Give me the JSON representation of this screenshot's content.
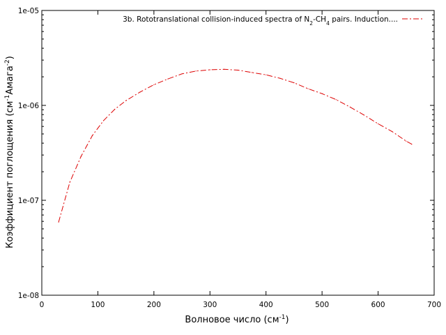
{
  "chart_data": {
    "type": "line",
    "x_scale": "linear",
    "y_scale": "log",
    "xlim": [
      0,
      700
    ],
    "ylim": [
      1e-08,
      1e-05
    ],
    "grid": false,
    "legend_position": "top-right",
    "xlabel_parts": {
      "base": "Волновое число (см",
      "sup": "-1",
      "end": ")"
    },
    "ylabel_parts": {
      "base": "Коэффициент поглощения (см",
      "sup1": "-1",
      "mid": "Амага",
      "sup2": "-2",
      "end": ")"
    },
    "x_ticks": [
      {
        "value": 0,
        "label": "0"
      },
      {
        "value": 100,
        "label": "100"
      },
      {
        "value": 200,
        "label": "200"
      },
      {
        "value": 300,
        "label": "300"
      },
      {
        "value": 400,
        "label": "400"
      },
      {
        "value": 500,
        "label": "500"
      },
      {
        "value": 600,
        "label": "600"
      },
      {
        "value": 700,
        "label": "700"
      }
    ],
    "y_ticks": [
      {
        "value": 1e-08,
        "label": "1e-08"
      },
      {
        "value": 1e-07,
        "label": "1e-07"
      },
      {
        "value": 1e-06,
        "label": "1e-06"
      },
      {
        "value": 1e-05,
        "label": "1e-05"
      }
    ],
    "series": [
      {
        "name_parts": {
          "a": "3b. Rototranslational collision-induced spectra of N",
          "s1": "2",
          "b": "-CH",
          "s2": "4",
          "c": " pairs. Induction...."
        },
        "color": "#dd0000",
        "line_style": "dash-dot",
        "x": [
          30,
          50,
          70,
          90,
          110,
          130,
          150,
          175,
          200,
          225,
          250,
          275,
          300,
          325,
          350,
          375,
          400,
          425,
          450,
          475,
          500,
          525,
          550,
          575,
          600,
          625,
          650,
          660
        ],
        "y": [
          5.9e-08,
          1.55e-07,
          2.9e-07,
          4.8e-07,
          6.9e-07,
          9.1e-07,
          1.12e-06,
          1.38e-06,
          1.65e-06,
          1.9e-06,
          2.15e-06,
          2.3e-06,
          2.37e-06,
          2.4e-06,
          2.35e-06,
          2.22e-06,
          2.1e-06,
          1.93e-06,
          1.73e-06,
          1.5e-06,
          1.33e-06,
          1.15e-06,
          9.6e-07,
          7.9e-07,
          6.4e-07,
          5.3e-07,
          4.2e-07,
          3.9e-07
        ]
      }
    ]
  }
}
